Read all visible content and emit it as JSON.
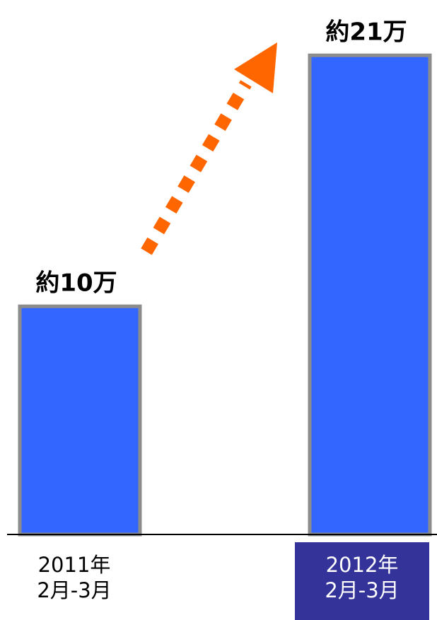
{
  "chart_data": {
    "type": "bar",
    "categories": [
      [
        "2011年",
        "2月-3月"
      ],
      [
        "2012年",
        "2月-3月"
      ]
    ],
    "values": [
      10,
      21
    ],
    "value_unit": "万",
    "data_labels": [
      "約10万",
      "約21万"
    ],
    "ylim": [
      0,
      22
    ],
    "highlighted_category_index": 1,
    "trend_arrow": {
      "from": 0,
      "to": 1,
      "style": "dashed"
    },
    "colors": {
      "bar_fill": "#3366ff",
      "bar_border": "#8c8c8c",
      "arrow": "#ff6600",
      "highlight_bg": "#333399",
      "baseline": "#000000"
    }
  }
}
